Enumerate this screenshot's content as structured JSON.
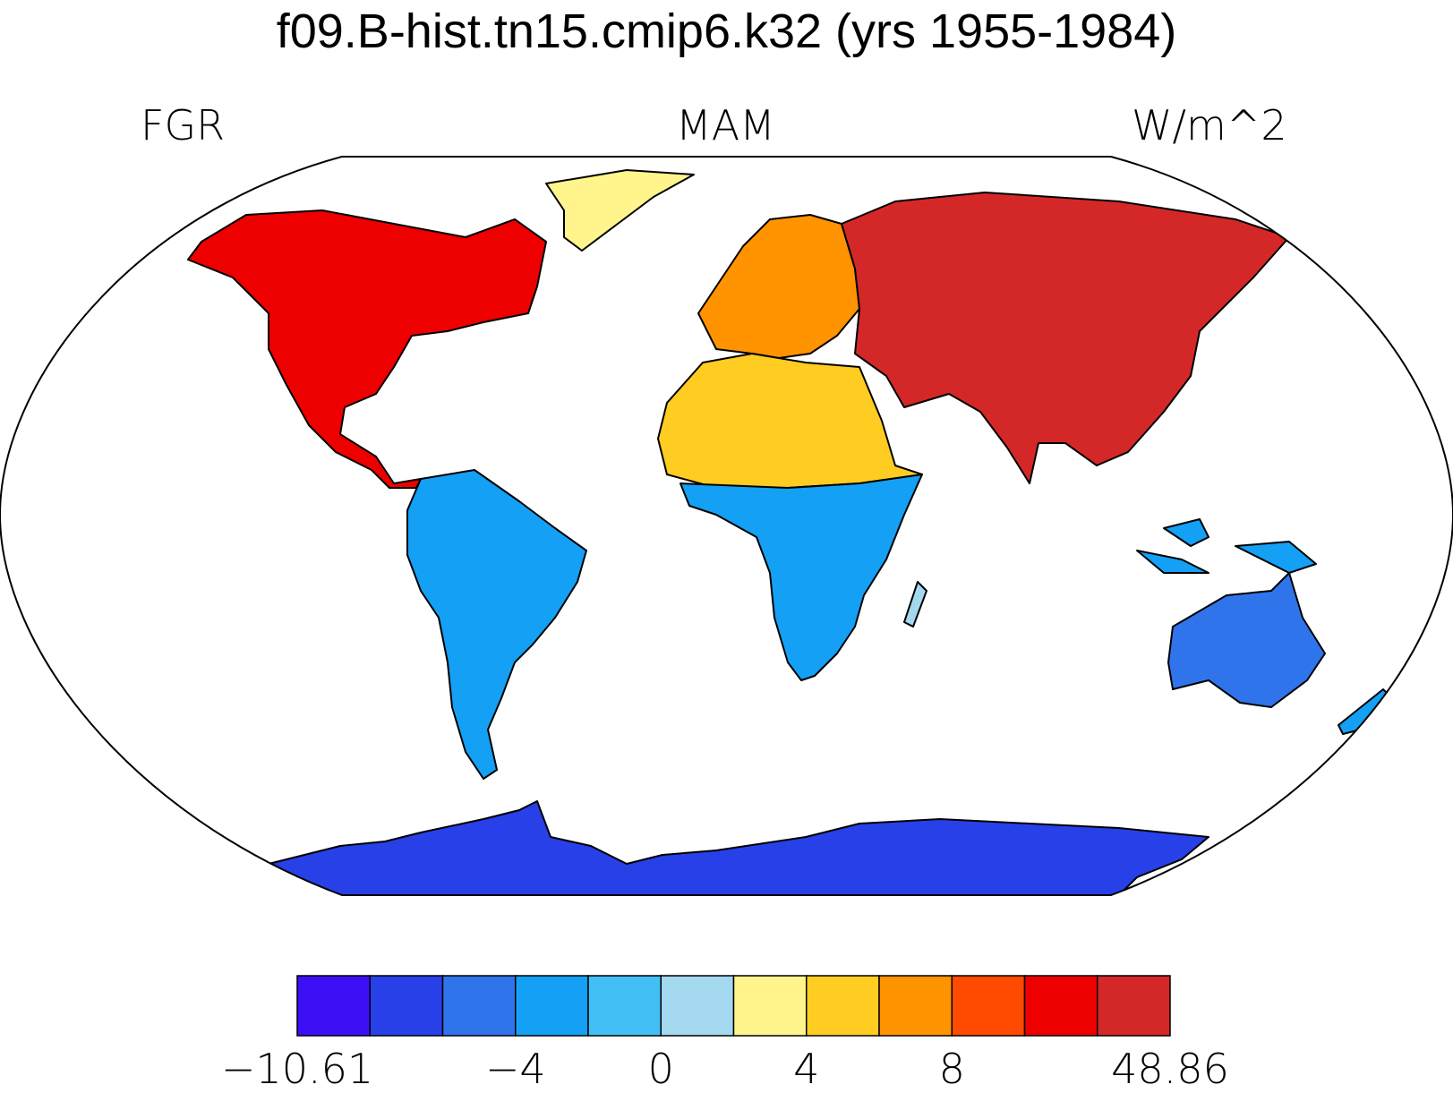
{
  "map": {
    "title": "f09.B-hist.tn15.cmip6.k32 (yrs 1955-1984)",
    "variable": "FGR",
    "season": "MAM",
    "units": "W/m^2",
    "projection": "Robinson",
    "colors": {
      "frame": "#000000",
      "ocean": "#ffffff",
      "coast": "#000000"
    },
    "regions": [
      {
        "name": "North America",
        "level": 11
      },
      {
        "name": "Greenland",
        "level": 7
      },
      {
        "name": "Europe",
        "level": 9
      },
      {
        "name": "Asia",
        "level": 12
      },
      {
        "name": "North Africa",
        "level": 8
      },
      {
        "name": "South America",
        "level": 4
      },
      {
        "name": "Southern Africa",
        "level": 4
      },
      {
        "name": "Australia",
        "level": 3
      },
      {
        "name": "Antarctica",
        "level": 2
      }
    ]
  },
  "colorbar": {
    "colors": [
      "#3d0ff7",
      "#2840e8",
      "#3074ec",
      "#14a0f5",
      "#42c0f5",
      "#a4d8ef",
      "#fff58c",
      "#ffcc22",
      "#ff9300",
      "#ff4a00",
      "#ee0000",
      "#d42828"
    ],
    "labels": [
      {
        "text": "−10.61",
        "boundary": 0
      },
      {
        "text": "−4",
        "boundary": 3
      },
      {
        "text": "0",
        "boundary": 5
      },
      {
        "text": "4",
        "boundary": 7
      },
      {
        "text": "8",
        "boundary": 9
      },
      {
        "text": "48.86",
        "boundary": 12
      }
    ]
  }
}
